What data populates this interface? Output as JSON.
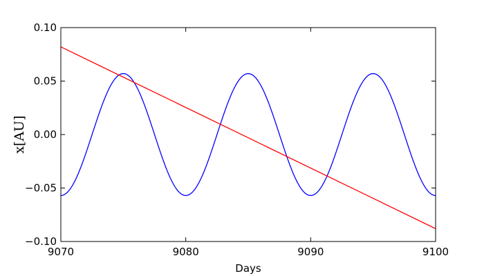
{
  "chart_data": {
    "type": "line",
    "title": "",
    "xlabel": "Days",
    "ylabel": "x[AU]",
    "xlim": [
      9070,
      9100
    ],
    "ylim": [
      -0.1,
      0.1
    ],
    "x_ticks": [
      9070,
      9080,
      9090,
      9100
    ],
    "x_tick_labels": [
      "9070",
      "9080",
      "9090",
      "9100"
    ],
    "y_ticks": [
      -0.1,
      -0.05,
      0.0,
      0.05,
      0.1
    ],
    "y_tick_labels": [
      "−0.10",
      "−0.05",
      "0.00",
      "0.05",
      "0.10"
    ],
    "grid": false,
    "legend": "none",
    "series": [
      {
        "color": "#0000ff",
        "kind": "sinusoid",
        "amplitude": 0.057,
        "period": 10,
        "peak_at": 9075,
        "x_range": [
          9070,
          9100
        ]
      },
      {
        "color": "#ff0000",
        "kind": "linear",
        "x": [
          9070,
          9100
        ],
        "y": [
          0.082,
          -0.088
        ]
      }
    ]
  }
}
